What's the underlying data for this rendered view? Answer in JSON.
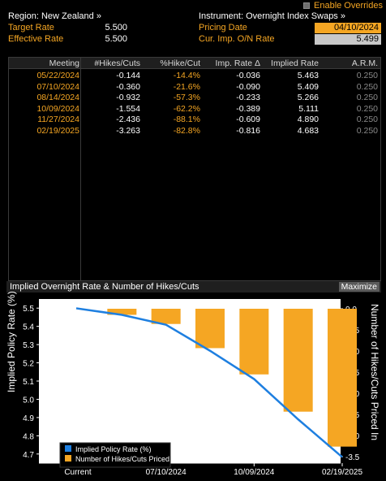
{
  "header": {
    "enable_overrides": "Enable Overrides",
    "region": "Region: New Zealand »",
    "instrument": "Instrument: Overnight Index Swaps »",
    "target_rate_label": "Target Rate",
    "target_rate_value": "5.500",
    "effective_rate_label": "Effective Rate",
    "effective_rate_value": "5.500",
    "pricing_date_label": "Pricing Date",
    "pricing_date_value": "04/10/2024",
    "cur_imp_label": "Cur. Imp. O/N Rate",
    "cur_imp_value": "5.499"
  },
  "table": {
    "columns": [
      "Meeting",
      "#Hikes/Cuts",
      "%Hike/Cut",
      "Imp. Rate Δ",
      "Implied Rate",
      "A.R.M."
    ],
    "rows": [
      [
        "05/22/2024",
        "-0.144",
        "-14.4%",
        "-0.036",
        "5.463",
        "0.250"
      ],
      [
        "07/10/2024",
        "-0.360",
        "-21.6%",
        "-0.090",
        "5.409",
        "0.250"
      ],
      [
        "08/14/2024",
        "-0.932",
        "-57.3%",
        "-0.233",
        "5.266",
        "0.250"
      ],
      [
        "10/09/2024",
        "-1.554",
        "-62.2%",
        "-0.389",
        "5.111",
        "0.250"
      ],
      [
        "11/27/2024",
        "-2.436",
        "-88.1%",
        "-0.609",
        "4.890",
        "0.250"
      ],
      [
        "02/19/2025",
        "-3.263",
        "-82.8%",
        "-0.816",
        "4.683",
        "0.250"
      ]
    ]
  },
  "chart_header": {
    "title": "Implied Overnight Rate & Number of Hikes/Cuts",
    "maximize": "Maximize"
  },
  "chart_data": {
    "type": "bar",
    "categories": [
      "Current",
      "05/22/2024",
      "07/10/2024",
      "08/14/2024",
      "10/09/2024",
      "11/27/2024",
      "02/19/2025"
    ],
    "series": [
      {
        "name": "Implied Policy Rate (%)",
        "kind": "line",
        "axis": "left",
        "color": "#1e7fe0",
        "values": [
          5.499,
          5.463,
          5.409,
          5.266,
          5.111,
          4.89,
          4.683
        ]
      },
      {
        "name": "Number of Hikes/Cuts Priced In",
        "kind": "bar",
        "axis": "right",
        "color": "#f5a623",
        "values": [
          0,
          -0.144,
          -0.36,
          -0.932,
          -1.554,
          -2.436,
          -3.263
        ]
      }
    ],
    "x_tick_labels": [
      "Current",
      "07/10/2024",
      "10/09/2024",
      "02/19/2025"
    ],
    "ylabel_left": "Implied Policy Rate (%)",
    "ylabel_right": "Number of Hikes/Cuts Priced In",
    "ylim_left": [
      4.65,
      5.55
    ],
    "yticks_left": [
      "5.5",
      "5.4",
      "5.3",
      "5.2",
      "5.1",
      "5.0",
      "4.9",
      "4.8",
      "4.7"
    ],
    "ylim_right": [
      -3.5,
      0
    ],
    "yticks_right": [
      "0.0",
      "-0.5",
      "-1.0",
      "-1.5",
      "-2.0",
      "-2.5",
      "-3.0",
      "-3.5"
    ],
    "legend_position": "bottom-left"
  },
  "colors": {
    "accent": "#f5a623",
    "line": "#1e7fe0",
    "bg": "#000000"
  }
}
